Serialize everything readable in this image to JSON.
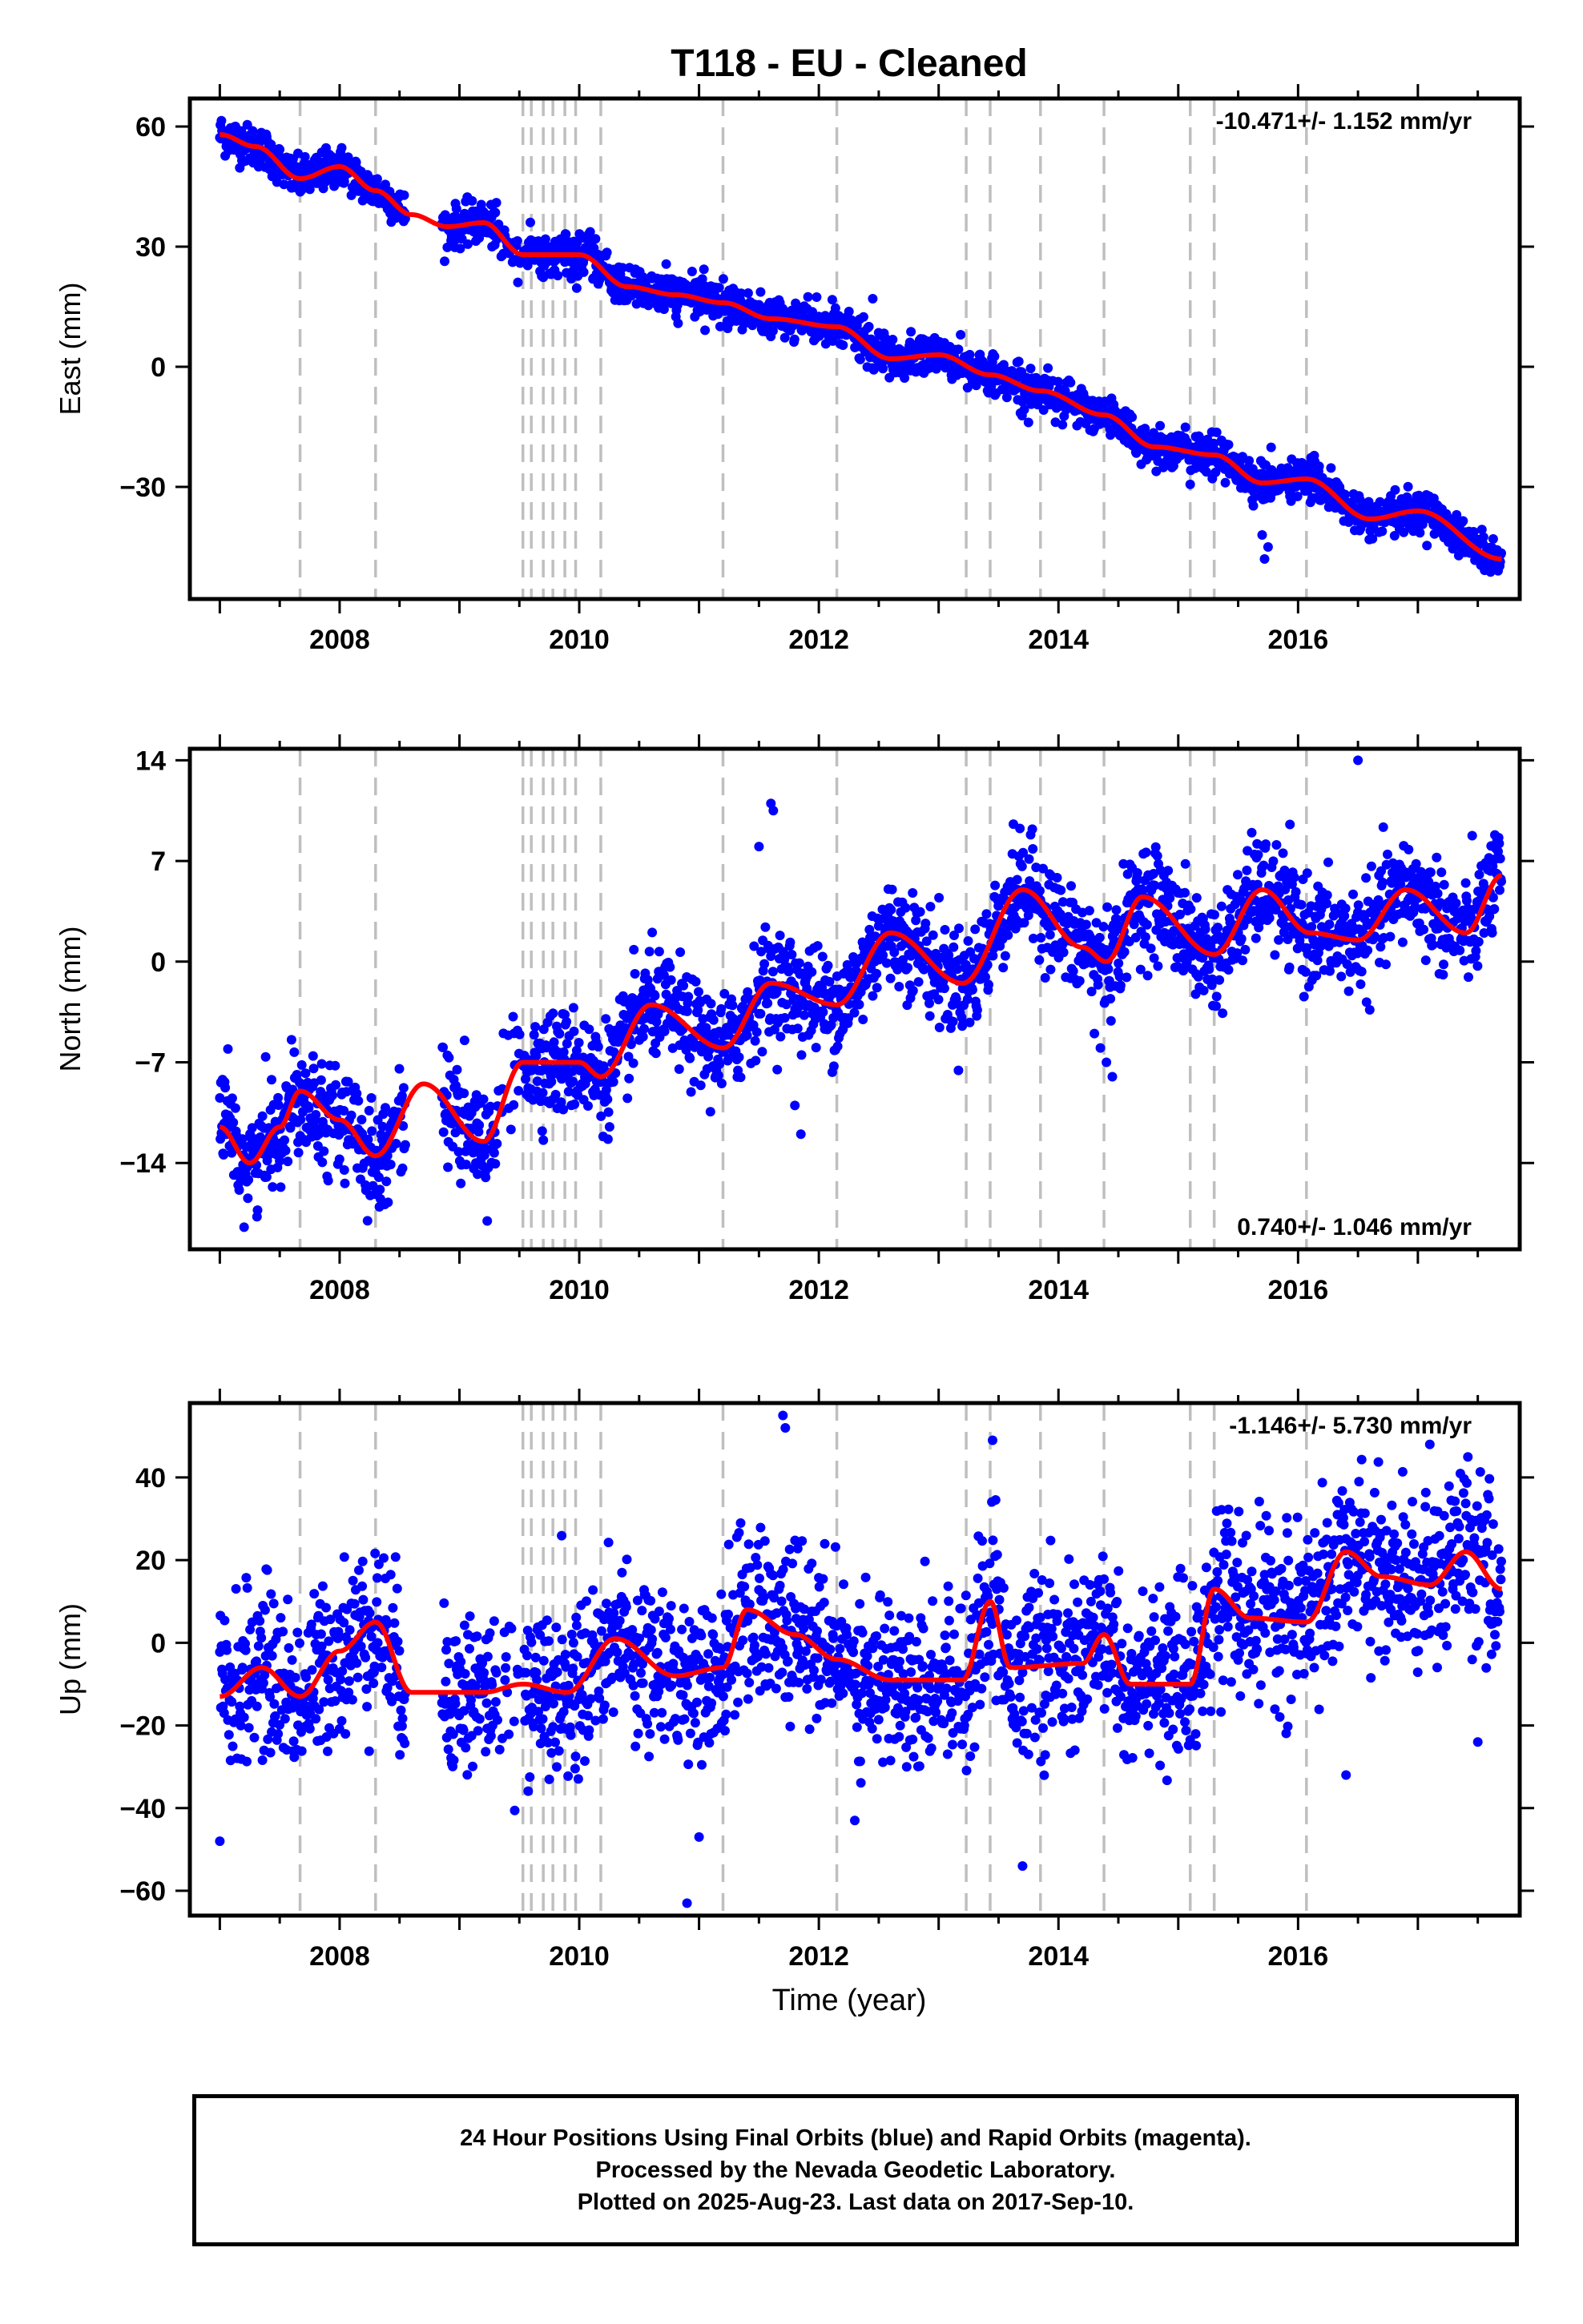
{
  "title": "T118  - EU - Cleaned",
  "xlabel": "Time (year)",
  "footer": {
    "line1": "24 Hour Positions Using Final Orbits (blue) and Rapid Orbits (magenta).",
    "line2": "Processed by the Nevada Geodetic Laboratory.",
    "line3": "Plotted on 2025-Aug-23. Last data on 2017-Sep-10."
  },
  "colors": {
    "data": "#0000ff",
    "model": "#ff0000",
    "steps": "#bfbfbf"
  },
  "chart_data": [
    {
      "type": "scatter",
      "name": "east",
      "ylabel": "East (mm)",
      "rate_label": "-10.471+/- 1.152 mm/yr",
      "rate_position": "top-right",
      "xlim": [
        2006.75,
        2017.85
      ],
      "ylim": [
        -58,
        67
      ],
      "yticks": [
        60,
        30,
        0,
        -30
      ],
      "xticks": [
        2008,
        2010,
        2012,
        2014,
        2016
      ],
      "scatter_std": 2.5,
      "steps": [
        2007.67,
        2008.3,
        2009.53,
        2009.6,
        2009.7,
        2009.78,
        2009.88,
        2009.97,
        2010.18,
        2011.2,
        2012.15,
        2013.23,
        2013.43,
        2013.85,
        2014.38,
        2015.1,
        2015.3,
        2016.07
      ],
      "gaps": [
        [
          2008.55,
          2008.85
        ]
      ],
      "model": [
        [
          2007.0,
          58
        ],
        [
          2007.3,
          55
        ],
        [
          2007.67,
          47
        ],
        [
          2008.0,
          50
        ],
        [
          2008.3,
          44
        ],
        [
          2008.6,
          38
        ],
        [
          2008.9,
          35
        ],
        [
          2009.2,
          36
        ],
        [
          2009.53,
          28
        ],
        [
          2010.0,
          28
        ],
        [
          2010.4,
          20
        ],
        [
          2010.8,
          18
        ],
        [
          2011.2,
          16
        ],
        [
          2011.6,
          12
        ],
        [
          2012.15,
          10
        ],
        [
          2012.6,
          2
        ],
        [
          2013.0,
          3
        ],
        [
          2013.43,
          -2
        ],
        [
          2013.85,
          -6
        ],
        [
          2014.38,
          -12
        ],
        [
          2014.8,
          -20
        ],
        [
          2015.3,
          -22
        ],
        [
          2015.7,
          -29
        ],
        [
          2016.07,
          -28
        ],
        [
          2016.6,
          -38
        ],
        [
          2017.0,
          -36
        ],
        [
          2017.7,
          -48
        ]
      ],
      "outliers": [
        [
          2015.7,
          -42
        ],
        [
          2015.75,
          -45
        ],
        [
          2015.72,
          -48
        ],
        [
          2012.45,
          17
        ],
        [
          2016.98,
          -34
        ]
      ]
    },
    {
      "type": "scatter",
      "name": "north",
      "ylabel": "North (mm)",
      "rate_label": "0.740+/- 1.046 mm/yr",
      "rate_position": "bottom-right",
      "xlim": [
        2006.75,
        2017.85
      ],
      "ylim": [
        -20,
        14.8
      ],
      "yticks": [
        14,
        7,
        0,
        -7,
        -14
      ],
      "xticks": [
        2008,
        2010,
        2012,
        2014,
        2016
      ],
      "scatter_std": 1.8,
      "steps": [
        2007.67,
        2008.3,
        2009.53,
        2009.6,
        2009.7,
        2009.78,
        2009.88,
        2009.97,
        2010.18,
        2011.2,
        2012.15,
        2013.23,
        2013.43,
        2013.85,
        2014.38,
        2015.1,
        2015.3,
        2016.07
      ],
      "gaps": [
        [
          2008.55,
          2008.85
        ]
      ],
      "model": [
        [
          2007.0,
          -11.5
        ],
        [
          2007.25,
          -14
        ],
        [
          2007.5,
          -11.5
        ],
        [
          2007.67,
          -9
        ],
        [
          2008.0,
          -11
        ],
        [
          2008.3,
          -13.5
        ],
        [
          2008.7,
          -8.5
        ],
        [
          2009.2,
          -12.5
        ],
        [
          2009.53,
          -7
        ],
        [
          2010.0,
          -7
        ],
        [
          2010.18,
          -8
        ],
        [
          2010.6,
          -3
        ],
        [
          2011.2,
          -6
        ],
        [
          2011.6,
          -1.5
        ],
        [
          2012.15,
          -3
        ],
        [
          2012.6,
          2
        ],
        [
          2013.2,
          -1.5
        ],
        [
          2013.7,
          5
        ],
        [
          2014.2,
          1
        ],
        [
          2014.4,
          0
        ],
        [
          2014.7,
          4.5
        ],
        [
          2015.3,
          0.5
        ],
        [
          2015.7,
          5
        ],
        [
          2016.1,
          2
        ],
        [
          2016.5,
          1.5
        ],
        [
          2016.9,
          5
        ],
        [
          2017.4,
          2
        ],
        [
          2017.7,
          6
        ]
      ],
      "outliers": [
        [
          2011.6,
          11
        ],
        [
          2011.62,
          10.5
        ],
        [
          2011.5,
          8
        ],
        [
          2014.3,
          -5
        ],
        [
          2014.35,
          -6
        ],
        [
          2014.45,
          -8
        ],
        [
          2014.4,
          -7
        ],
        [
          2016.5,
          14
        ],
        [
          2011.85,
          -12
        ],
        [
          2011.8,
          -10
        ]
      ]
    },
    {
      "type": "scatter",
      "name": "up",
      "ylabel": "Up (mm)",
      "rate_label": "-1.146+/- 5.730 mm/yr",
      "rate_position": "top-right",
      "xlim": [
        2006.75,
        2017.85
      ],
      "ylim": [
        -66,
        58
      ],
      "yticks": [
        40,
        20,
        0,
        -20,
        -40,
        -60
      ],
      "xticks": [
        2008,
        2010,
        2012,
        2014,
        2016
      ],
      "scatter_std": 10,
      "steps": [
        2007.67,
        2008.3,
        2009.53,
        2009.6,
        2009.7,
        2009.78,
        2009.88,
        2009.97,
        2010.18,
        2011.2,
        2012.15,
        2013.23,
        2013.43,
        2013.85,
        2014.38,
        2015.1,
        2015.3,
        2016.07
      ],
      "gaps": [
        [
          2008.55,
          2008.85
        ]
      ],
      "model": [
        [
          2007.0,
          -13
        ],
        [
          2007.35,
          -6
        ],
        [
          2007.67,
          -13
        ],
        [
          2008.0,
          -2
        ],
        [
          2008.3,
          5
        ],
        [
          2008.6,
          -12
        ],
        [
          2009.2,
          -12
        ],
        [
          2009.53,
          -10
        ],
        [
          2009.9,
          -12
        ],
        [
          2010.3,
          1
        ],
        [
          2010.8,
          -8
        ],
        [
          2011.2,
          -6
        ],
        [
          2011.4,
          8
        ],
        [
          2011.8,
          2
        ],
        [
          2012.15,
          -4
        ],
        [
          2012.6,
          -9
        ],
        [
          2013.2,
          -9
        ],
        [
          2013.43,
          10
        ],
        [
          2013.6,
          -6
        ],
        [
          2014.2,
          -5
        ],
        [
          2014.38,
          2
        ],
        [
          2014.6,
          -10
        ],
        [
          2015.1,
          -10
        ],
        [
          2015.3,
          13
        ],
        [
          2015.6,
          6
        ],
        [
          2016.07,
          5
        ],
        [
          2016.4,
          22
        ],
        [
          2016.7,
          16
        ],
        [
          2017.1,
          14
        ],
        [
          2017.4,
          22
        ],
        [
          2017.7,
          13
        ]
      ],
      "outliers": [
        [
          2011.7,
          55
        ],
        [
          2011.72,
          52
        ],
        [
          2010.9,
          -63
        ],
        [
          2013.45,
          49
        ],
        [
          2013.7,
          -54
        ],
        [
          2007.0,
          -48
        ],
        [
          2017.1,
          48
        ],
        [
          2012.3,
          -43
        ],
        [
          2011.0,
          -47
        ],
        [
          2016.4,
          -32
        ],
        [
          2017.5,
          -24
        ]
      ]
    }
  ]
}
